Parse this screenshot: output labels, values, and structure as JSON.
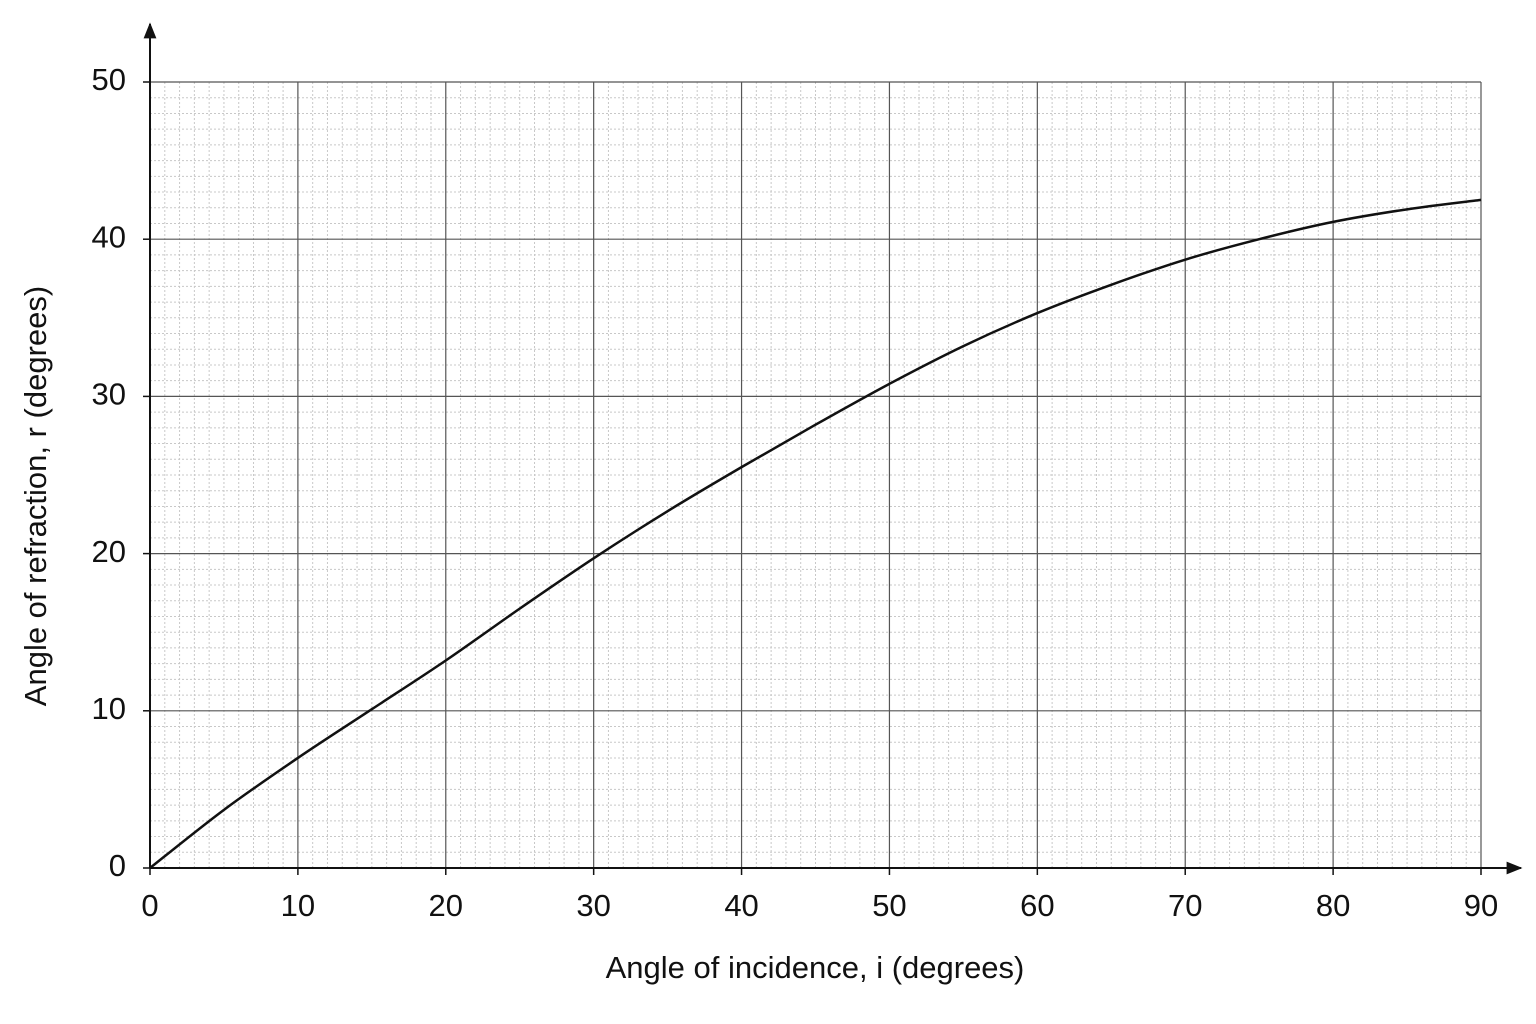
{
  "chart_data": {
    "type": "line",
    "x_label": "Angle of incidence, i (degrees)",
    "y_label": "Angle of refraction, r (degrees)",
    "x": [
      0,
      5,
      10,
      15,
      20,
      25,
      30,
      35,
      40,
      45,
      50,
      55,
      60,
      65,
      70,
      75,
      80,
      85,
      90
    ],
    "values": [
      0,
      3.7,
      7,
      10.1,
      13.2,
      16.5,
      19.7,
      22.7,
      25.5,
      28.2,
      30.8,
      33.2,
      35.3,
      37.1,
      38.7,
      40.0,
      41.1,
      41.9,
      42.5
    ],
    "color": "#111111",
    "xlim": [
      0,
      90
    ],
    "xticks": [
      0,
      10,
      20,
      30,
      40,
      50,
      60,
      70,
      80,
      90
    ],
    "ylim": [
      0,
      50
    ],
    "yticks": [
      0,
      10,
      20,
      30,
      40,
      50
    ],
    "grid": true
  }
}
